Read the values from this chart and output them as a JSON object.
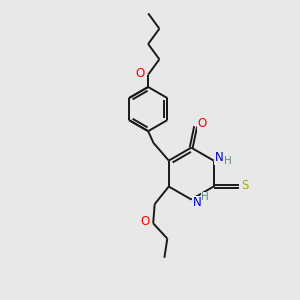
{
  "background_color": "#e8e8e8",
  "bond_color": "#1a1a1a",
  "bond_width": 1.4,
  "atom_colors": {
    "O": "#ff0000",
    "N": "#0000cc",
    "S": "#aaaa00",
    "C": "#1a1a1a",
    "H": "#5a8a8a"
  },
  "font_size": 8.5,
  "figsize": [
    3.0,
    3.0
  ],
  "dpi": 100
}
